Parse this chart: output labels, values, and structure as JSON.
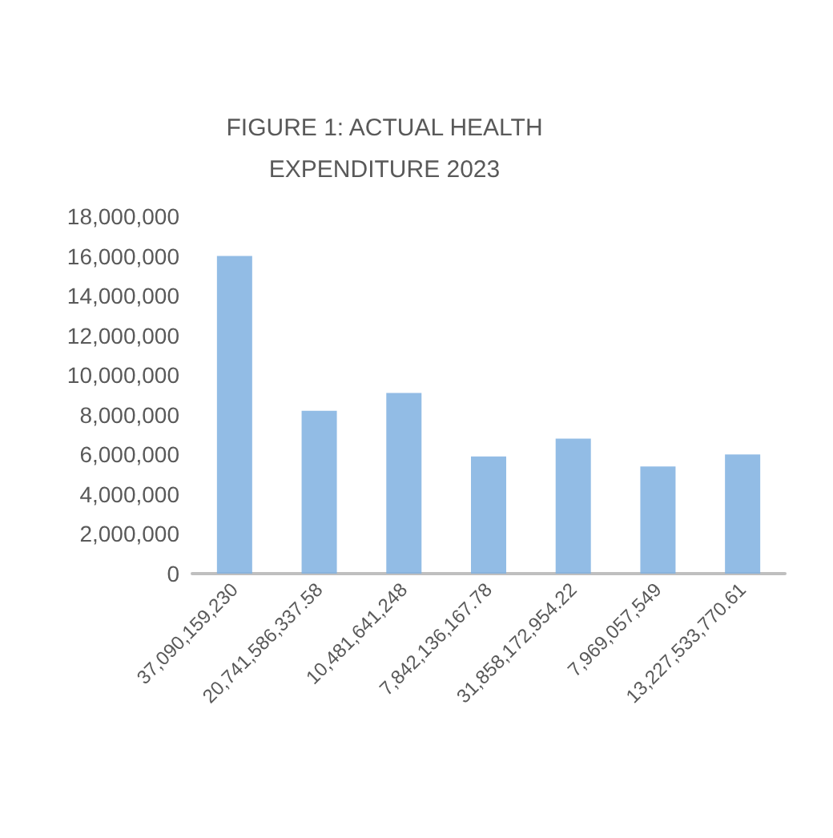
{
  "chart_data": {
    "type": "bar",
    "title": "FIGURE 1: ACTUAL HEALTH\nEXPENDITURE 2023",
    "categories": [
      "37,090,159,230",
      "20,741,586,337.58",
      "10,481,641,248",
      "7,842,136,167.78",
      "31,858,172,954.22",
      "7,969,057,549",
      "13,227,533,770.61"
    ],
    "values": [
      16000000,
      8200000,
      9100000,
      5900000,
      6800000,
      5400000,
      6000000
    ],
    "color": "#7fb0e0",
    "ylim": [
      0,
      18000000
    ],
    "yticks": [
      {
        "value": 0,
        "label": "0"
      },
      {
        "value": 2000000,
        "label": "2,000,000"
      },
      {
        "value": 4000000,
        "label": "4,000,000"
      },
      {
        "value": 6000000,
        "label": "6,000,000"
      },
      {
        "value": 8000000,
        "label": "8,000,000"
      },
      {
        "value": 10000000,
        "label": "10,000,000"
      },
      {
        "value": 12000000,
        "label": "12,000,000"
      },
      {
        "value": 14000000,
        "label": "14,000,000"
      },
      {
        "value": 16000000,
        "label": "16,000,000"
      },
      {
        "value": 18000000,
        "label": "18,000,000"
      }
    ]
  }
}
